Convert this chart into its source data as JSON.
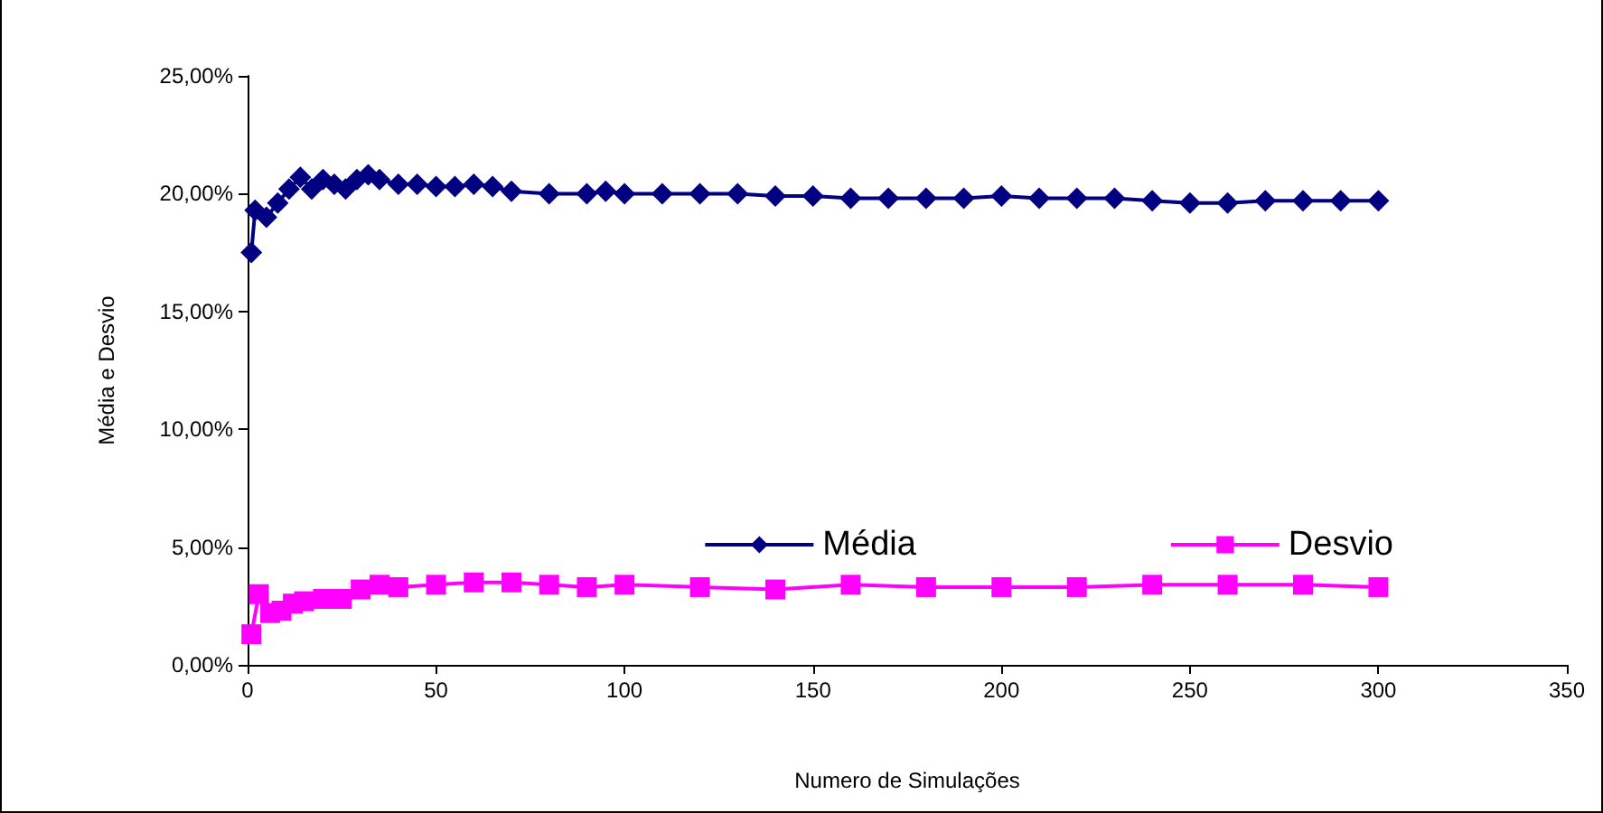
{
  "chart_data": {
    "type": "line",
    "xlabel": "Numero de Simulações",
    "ylabel": "Média e Desvio",
    "xlim": [
      0,
      350
    ],
    "xticks": [
      0,
      50,
      100,
      150,
      200,
      250,
      300,
      350
    ],
    "ylim": [
      0,
      25
    ],
    "yticks": [
      {
        "value": 0,
        "label": "0,00%"
      },
      {
        "value": 5,
        "label": "5,00%"
      },
      {
        "value": 10,
        "label": "10,00%"
      },
      {
        "value": 15,
        "label": "15,00%"
      },
      {
        "value": 20,
        "label": "20,00%"
      },
      {
        "value": 25,
        "label": "25,00%"
      }
    ],
    "grid": false,
    "legend": "right",
    "series": [
      {
        "name": "Média",
        "color": "#000080",
        "marker": "diamond",
        "x": [
          1,
          2,
          5,
          8,
          11,
          14,
          17,
          20,
          23,
          26,
          29,
          32,
          35,
          40,
          45,
          50,
          55,
          60,
          65,
          70,
          80,
          90,
          95,
          100,
          110,
          120,
          130,
          140,
          150,
          160,
          170,
          180,
          190,
          200,
          210,
          220,
          230,
          240,
          250,
          260,
          270,
          280,
          290,
          300
        ],
        "values": [
          17.5,
          19.3,
          19.0,
          19.6,
          20.2,
          20.7,
          20.2,
          20.6,
          20.4,
          20.2,
          20.6,
          20.8,
          20.6,
          20.4,
          20.4,
          20.3,
          20.3,
          20.4,
          20.3,
          20.1,
          20.0,
          20.0,
          20.1,
          20.0,
          20.0,
          20.0,
          20.0,
          19.9,
          19.9,
          19.8,
          19.8,
          19.8,
          19.8,
          19.9,
          19.8,
          19.8,
          19.8,
          19.7,
          19.6,
          19.6,
          19.7,
          19.7,
          19.7,
          19.7
        ]
      },
      {
        "name": "Desvio",
        "color": "#ff00ff",
        "marker": "square",
        "x": [
          1,
          3,
          6,
          9,
          12,
          15,
          20,
          25,
          30,
          35,
          40,
          50,
          60,
          70,
          80,
          90,
          100,
          120,
          140,
          160,
          180,
          200,
          220,
          240,
          260,
          280,
          300
        ],
        "values": [
          1.3,
          3.0,
          2.2,
          2.3,
          2.6,
          2.7,
          2.8,
          2.8,
          3.2,
          3.4,
          3.3,
          3.4,
          3.5,
          3.5,
          3.4,
          3.3,
          3.4,
          3.3,
          3.2,
          3.4,
          3.3,
          3.3,
          3.3,
          3.4,
          3.4,
          3.4,
          3.3
        ]
      }
    ]
  }
}
